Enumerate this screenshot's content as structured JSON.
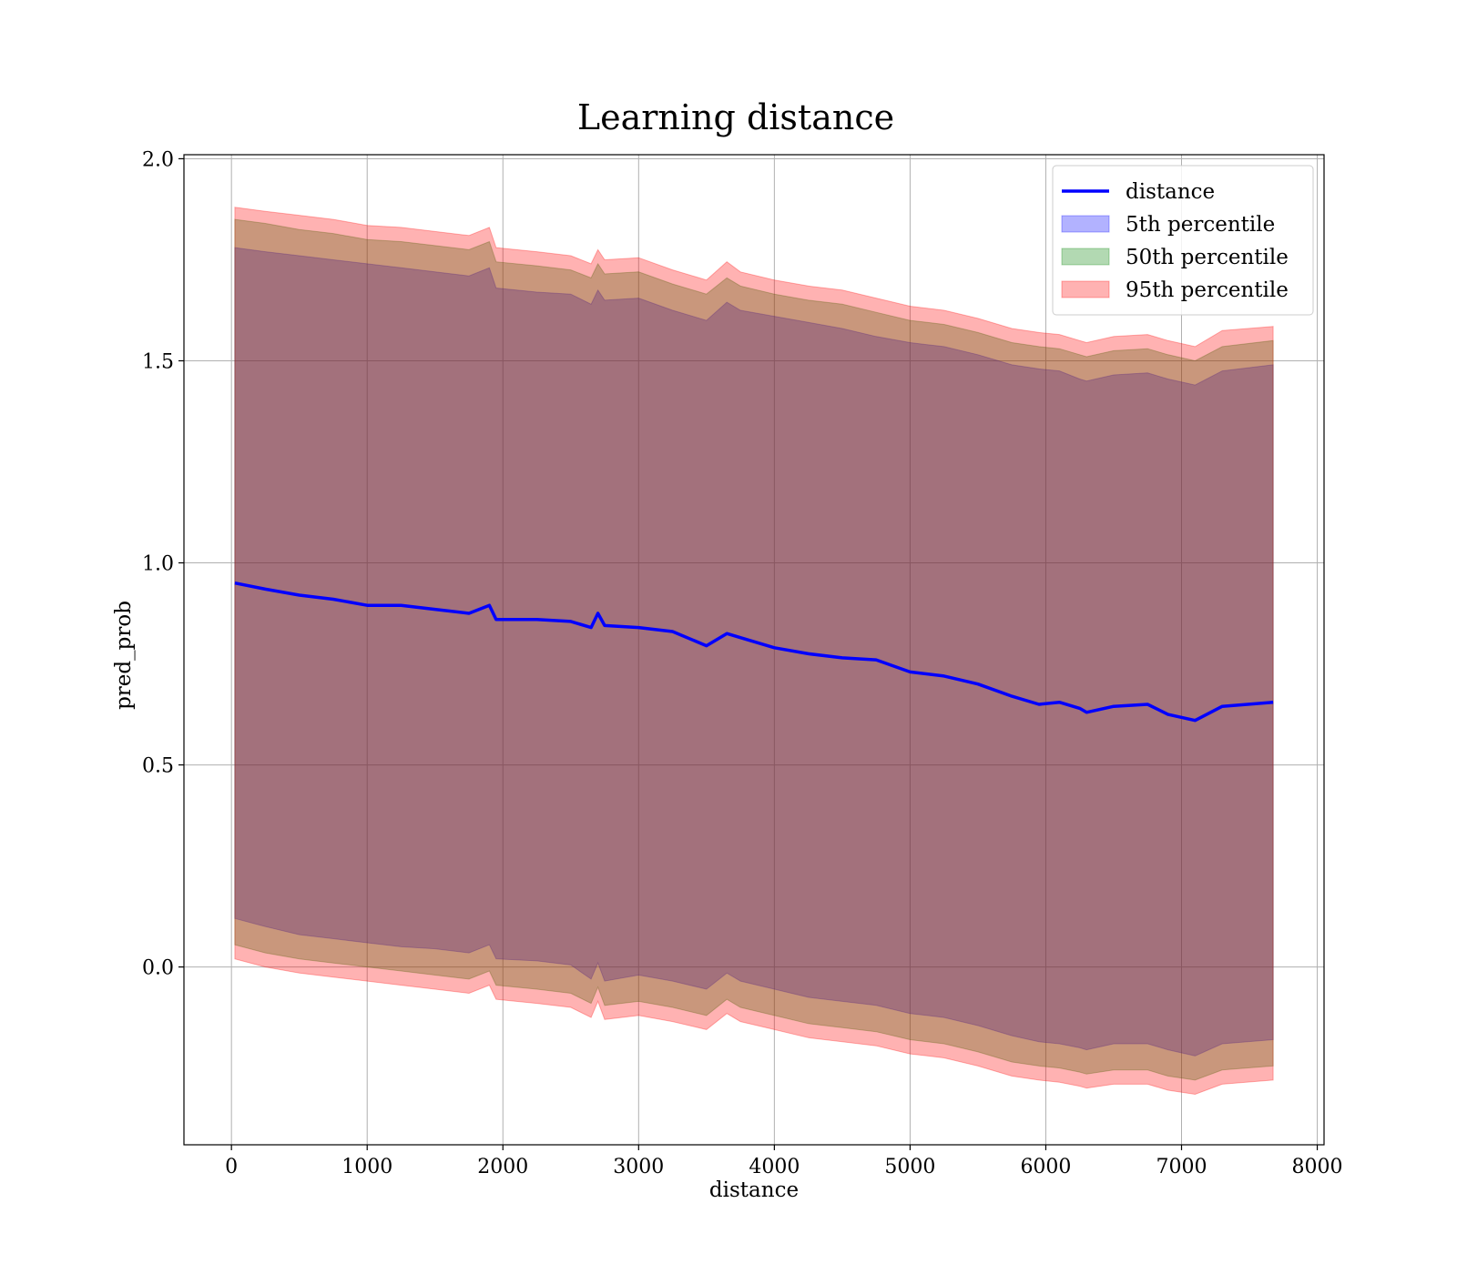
{
  "chart_data": {
    "type": "line",
    "title": "Learning distance",
    "xlabel": "distance",
    "ylabel": "pred_prob",
    "xlim": [
      -350,
      8050
    ],
    "ylim": [
      -0.44,
      2.01
    ],
    "xticks": [
      0,
      1000,
      2000,
      3000,
      4000,
      5000,
      6000,
      7000,
      8000
    ],
    "yticks": [
      0.0,
      0.5,
      1.0,
      1.5,
      2.0
    ],
    "xtick_labels": [
      "0",
      "1000",
      "2000",
      "3000",
      "4000",
      "5000",
      "6000",
      "7000",
      "8000"
    ],
    "ytick_labels": [
      "0.0",
      "0.5",
      "1.0",
      "1.5",
      "2.0"
    ],
    "grid": true,
    "legend_position": "top-right",
    "x": [
      25,
      250,
      500,
      750,
      1000,
      1250,
      1500,
      1750,
      1900,
      1950,
      2250,
      2500,
      2650,
      2700,
      2750,
      3000,
      3250,
      3500,
      3650,
      3750,
      4000,
      4250,
      4500,
      4750,
      5000,
      5250,
      5500,
      5750,
      5950,
      6100,
      6250,
      6300,
      6500,
      6750,
      6900,
      7100,
      7300,
      7675
    ],
    "series": [
      {
        "name": "distance",
        "kind": "line",
        "color": "#0000ff",
        "values": [
          0.95,
          0.935,
          0.92,
          0.91,
          0.895,
          0.895,
          0.885,
          0.875,
          0.895,
          0.86,
          0.86,
          0.855,
          0.84,
          0.875,
          0.845,
          0.84,
          0.83,
          0.795,
          0.825,
          0.815,
          0.79,
          0.775,
          0.765,
          0.76,
          0.73,
          0.72,
          0.7,
          0.67,
          0.65,
          0.655,
          0.64,
          0.63,
          0.645,
          0.65,
          0.625,
          0.61,
          0.645,
          0.655
        ]
      },
      {
        "name": "5th percentile",
        "kind": "band",
        "color": "#0000ff",
        "upper": [
          1.78,
          1.77,
          1.76,
          1.75,
          1.74,
          1.73,
          1.72,
          1.71,
          1.73,
          1.68,
          1.67,
          1.665,
          1.64,
          1.675,
          1.65,
          1.655,
          1.625,
          1.6,
          1.645,
          1.625,
          1.61,
          1.595,
          1.58,
          1.56,
          1.545,
          1.535,
          1.515,
          1.49,
          1.48,
          1.475,
          1.455,
          1.45,
          1.465,
          1.47,
          1.455,
          1.44,
          1.475,
          1.49
        ],
        "lower": [
          0.12,
          0.1,
          0.08,
          0.07,
          0.06,
          0.05,
          0.045,
          0.035,
          0.055,
          0.02,
          0.015,
          0.005,
          -0.03,
          0.01,
          -0.035,
          -0.02,
          -0.035,
          -0.055,
          -0.015,
          -0.035,
          -0.055,
          -0.075,
          -0.085,
          -0.095,
          -0.115,
          -0.125,
          -0.145,
          -0.17,
          -0.185,
          -0.19,
          -0.2,
          -0.205,
          -0.19,
          -0.19,
          -0.205,
          -0.22,
          -0.19,
          -0.18
        ]
      },
      {
        "name": "50th percentile",
        "kind": "band",
        "color": "#008000",
        "upper": [
          1.85,
          1.84,
          1.825,
          1.815,
          1.8,
          1.795,
          1.785,
          1.775,
          1.795,
          1.745,
          1.735,
          1.725,
          1.705,
          1.74,
          1.715,
          1.72,
          1.69,
          1.665,
          1.705,
          1.685,
          1.665,
          1.65,
          1.64,
          1.62,
          1.6,
          1.59,
          1.57,
          1.545,
          1.535,
          1.53,
          1.515,
          1.51,
          1.525,
          1.53,
          1.515,
          1.5,
          1.535,
          1.55
        ],
        "lower": [
          0.055,
          0.035,
          0.02,
          0.01,
          0.0,
          -0.01,
          -0.02,
          -0.03,
          -0.01,
          -0.045,
          -0.055,
          -0.065,
          -0.09,
          -0.05,
          -0.095,
          -0.085,
          -0.1,
          -0.12,
          -0.08,
          -0.1,
          -0.12,
          -0.14,
          -0.15,
          -0.16,
          -0.18,
          -0.19,
          -0.21,
          -0.235,
          -0.245,
          -0.25,
          -0.26,
          -0.265,
          -0.255,
          -0.255,
          -0.27,
          -0.28,
          -0.255,
          -0.245
        ]
      },
      {
        "name": "95th percentile",
        "kind": "band",
        "color": "#ff0000",
        "upper": [
          1.88,
          1.87,
          1.86,
          1.85,
          1.835,
          1.83,
          1.82,
          1.81,
          1.83,
          1.78,
          1.77,
          1.76,
          1.74,
          1.775,
          1.75,
          1.755,
          1.725,
          1.7,
          1.745,
          1.72,
          1.7,
          1.685,
          1.675,
          1.655,
          1.635,
          1.625,
          1.605,
          1.58,
          1.57,
          1.565,
          1.55,
          1.545,
          1.56,
          1.565,
          1.55,
          1.535,
          1.575,
          1.585
        ],
        "lower": [
          0.02,
          0.0,
          -0.015,
          -0.025,
          -0.035,
          -0.045,
          -0.055,
          -0.065,
          -0.045,
          -0.08,
          -0.09,
          -0.1,
          -0.125,
          -0.085,
          -0.13,
          -0.12,
          -0.135,
          -0.155,
          -0.115,
          -0.135,
          -0.155,
          -0.175,
          -0.185,
          -0.195,
          -0.215,
          -0.225,
          -0.245,
          -0.27,
          -0.28,
          -0.285,
          -0.295,
          -0.3,
          -0.29,
          -0.29,
          -0.305,
          -0.315,
          -0.29,
          -0.28
        ]
      }
    ]
  }
}
